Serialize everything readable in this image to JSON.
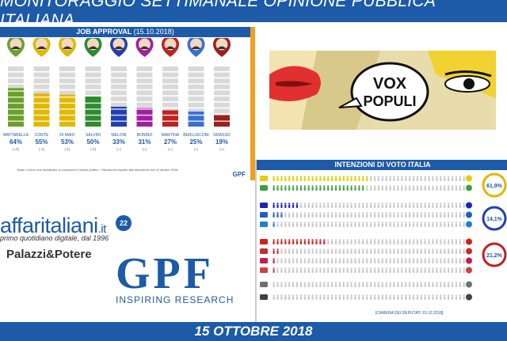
{
  "header": {
    "title": "MONITORAGGIO SETTIMANALE OPINIONE PUBBLICA ITALIANA"
  },
  "footer": {
    "date": "15 OTTOBRE 2018"
  },
  "job_approval": {
    "title": "JOB APPROVAL",
    "date": "(15.10.2018)",
    "footnote": "Base: Coloro che dichiarano di conoscere il leader politico. *Variazione rispetto alla rilevazione del 15 ottobre 2018",
    "logo": "GPF",
    "colors": {
      "pin_green": "#6aa02a",
      "pin_blue": "#2040b0",
      "pin_red": "#c02020",
      "pin_yellow": "#e0b800",
      "pin_purple": "#a020a0"
    }
  },
  "chart_data": [
    {
      "type": "bar",
      "title": "JOB APPROVAL",
      "subtitle": "(15.10.2018)",
      "categories": [
        "MATTARELLA",
        "CONTE",
        "DI MAIO",
        "SALVINI",
        "MELONI",
        "BONINO",
        "MARTINA",
        "BERLUSCONI",
        "GRASSO"
      ],
      "labels": [
        "64%",
        "55%",
        "53%",
        "50%",
        "33%",
        "31%",
        "27%",
        "25%",
        "19%"
      ],
      "changes": [
        "(=0)",
        "(-1)",
        "(-1)",
        "(-2)",
        "(=)",
        "(=)",
        "(=)",
        "(=)",
        "(=)"
      ],
      "values": [
        64,
        55,
        53,
        50,
        33,
        31,
        27,
        25,
        19
      ],
      "colors": [
        "#6aa02a",
        "#e0b800",
        "#e0b800",
        "#2e8b2e",
        "#2040b0",
        "#a020a0",
        "#c02020",
        "#3a70d0",
        "#9a2020"
      ],
      "ylim": [
        0,
        100
      ]
    },
    {
      "type": "bar",
      "title": "INTENZIONI DI VOTO ITALIA",
      "subtitle": "[CAMERA DEI DEPUTATI 15.10.2018]",
      "rows": [
        {
          "color": "#e0d000",
          "value": 31
        },
        {
          "color": "#40a040",
          "value": 30
        },
        {
          "color": "#2020c0",
          "value": 9
        },
        {
          "color": "#2060c0",
          "value": 3.5
        },
        {
          "color": "#2080d0",
          "value": 1.5
        },
        {
          "color": "#d02020",
          "value": 17
        },
        {
          "color": "#c03030",
          "value": 2.5
        },
        {
          "color": "#c02050",
          "value": 1.5
        },
        {
          "color": "#d04040",
          "value": 1
        },
        {
          "color": "#707070",
          "value": 0.5
        },
        {
          "color": "#404040",
          "value": 0.5
        }
      ],
      "groups": [
        {
          "label": "61,9%",
          "color": "#e0b800"
        },
        {
          "label": "14,1%",
          "color": "#2040b0"
        },
        {
          "label": "21,2%",
          "color": "#c02020"
        }
      ]
    }
  ],
  "vox_populi": {
    "line1": "VOX",
    "line2": "POPULI"
  },
  "logos": {
    "affaritaliani": "affaritaliani",
    "affaritaliani_tld": ".it",
    "affaritaliani_sub": "primo quotidiano digitale, dal 1996",
    "affaritaliani_badge": "22",
    "palazzi": "Palazzi&Potere",
    "gpf": "GPF",
    "gpf_sub": "INSPIRING RESEARCH"
  }
}
